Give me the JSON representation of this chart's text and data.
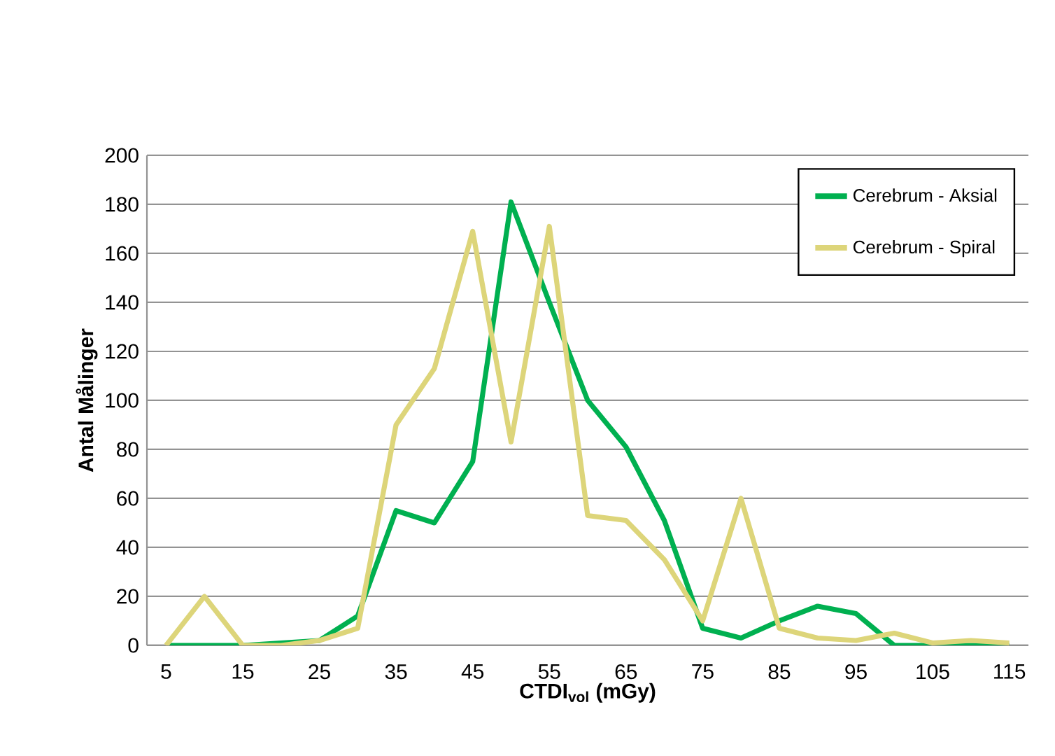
{
  "chart_data": {
    "type": "line",
    "xlabel": "CTDI$_{vol}$ (mGy)",
    "ylabel": "Antal Målinger",
    "x": [
      5,
      10,
      15,
      20,
      25,
      30,
      35,
      40,
      45,
      50,
      55,
      60,
      65,
      70,
      75,
      80,
      85,
      90,
      95,
      100,
      105,
      110,
      115
    ],
    "xlim": [
      2.5,
      117.5
    ],
    "xticks": [
      5,
      15,
      25,
      35,
      45,
      55,
      65,
      75,
      85,
      95,
      105,
      115
    ],
    "ylim": [
      0,
      200
    ],
    "yticks": [
      0,
      20,
      40,
      60,
      80,
      100,
      120,
      140,
      160,
      180,
      200
    ],
    "grid": "y",
    "legend": "top right",
    "marker": "none",
    "line_style": "solid",
    "series": [
      {
        "name": "Cerebrum - Aksial",
        "color": "#00b050",
        "values": [
          0,
          0,
          0,
          1,
          2,
          12,
          55,
          50,
          75,
          181,
          140,
          100,
          81,
          51,
          7,
          3,
          10,
          16,
          13,
          0,
          0,
          0,
          0
        ]
      },
      {
        "name": "Cerebrum - Spiral",
        "color": "#ddd57a",
        "values": [
          0,
          20,
          0,
          0,
          2,
          7,
          90,
          113,
          169,
          83,
          171,
          53,
          51,
          35,
          10,
          60,
          7,
          3,
          2,
          5,
          1,
          2,
          1
        ]
      }
    ]
  }
}
